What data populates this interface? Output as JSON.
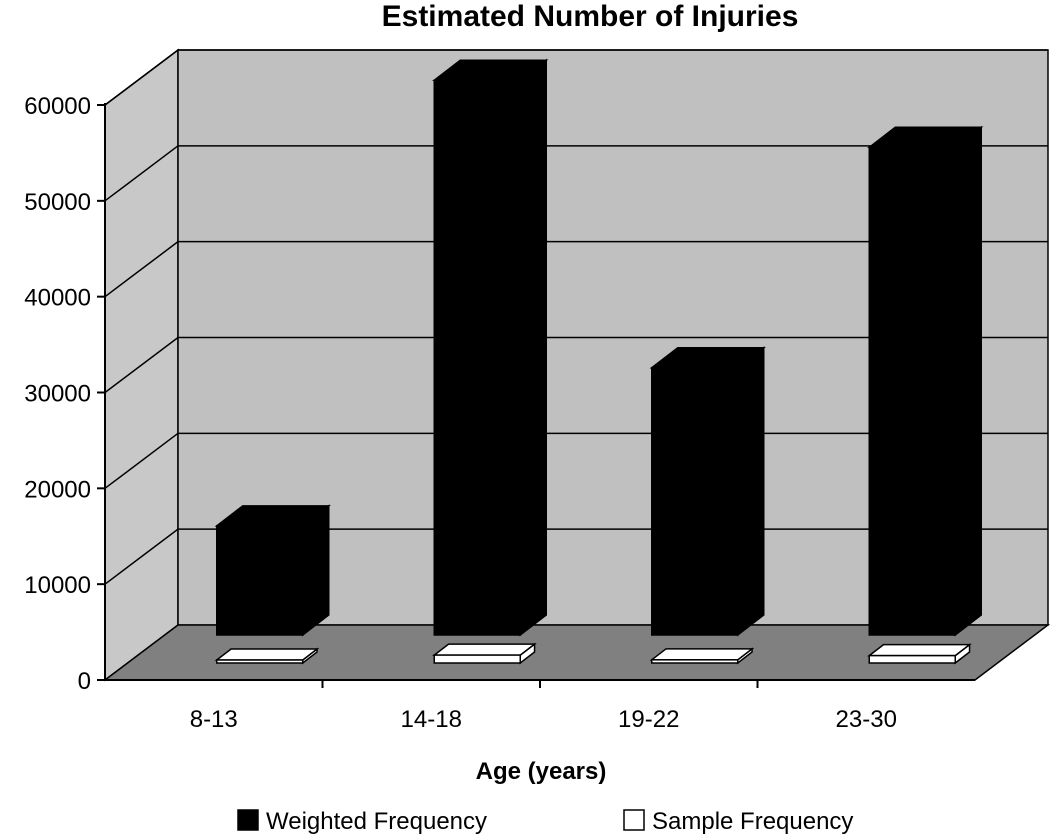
{
  "chart_data": {
    "type": "bar",
    "title": "Estimated Number of Injuries",
    "xlabel": "Age (years)",
    "ylabel": "",
    "categories": [
      "8-13",
      "14-18",
      "19-22",
      "23-30"
    ],
    "series": [
      {
        "name": "Weighted Frequency",
        "values": [
          14000,
          60500,
          30500,
          53500
        ],
        "color": "#000000"
      },
      {
        "name": "Sample Frequency",
        "values": [
          300,
          1500,
          600,
          1400
        ],
        "color": "#ffffff"
      }
    ],
    "yticks": [
      "0",
      "10000",
      "20000",
      "30000",
      "40000",
      "50000",
      "60000"
    ],
    "ylim": [
      0,
      60000
    ],
    "grid": true,
    "legend": "bottom",
    "colors": {
      "wall": "#c0c0c0",
      "floor": "#808080",
      "side_wall": "#c8c8c8"
    }
  }
}
